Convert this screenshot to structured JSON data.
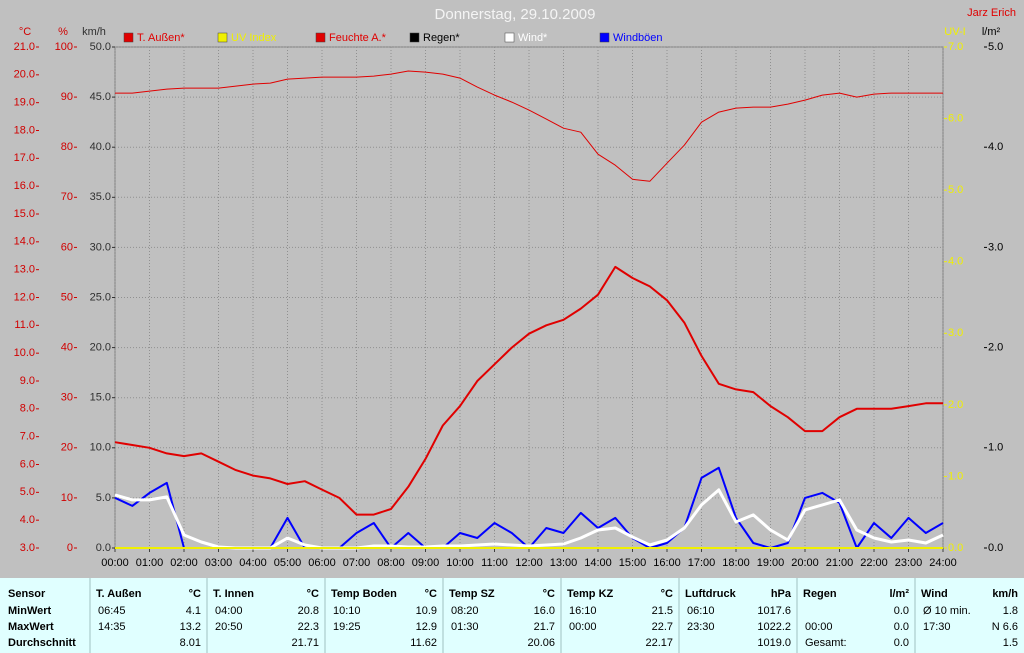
{
  "chart_data": {
    "type": "line",
    "title": "Donnerstag, 29.10.2009",
    "author": "Jarz Erich",
    "xlim": [
      0,
      24
    ],
    "xticks": [
      {
        "value": 0,
        "label": "00:00"
      },
      {
        "value": 1,
        "label": "01:00"
      },
      {
        "value": 2,
        "label": "02:00"
      },
      {
        "value": 3,
        "label": "03:00"
      },
      {
        "value": 4,
        "label": "04:00"
      },
      {
        "value": 5,
        "label": "05:00"
      },
      {
        "value": 6,
        "label": "06:00"
      },
      {
        "value": 7,
        "label": "07:00"
      },
      {
        "value": 8,
        "label": "08:00"
      },
      {
        "value": 9,
        "label": "09:00"
      },
      {
        "value": 10,
        "label": "10:00"
      },
      {
        "value": 11,
        "label": "11:00"
      },
      {
        "value": 12,
        "label": "12:00"
      },
      {
        "value": 13,
        "label": "13:00"
      },
      {
        "value": 14,
        "label": "14:00"
      },
      {
        "value": 15,
        "label": "15:00"
      },
      {
        "value": 16,
        "label": "16:00"
      },
      {
        "value": 17,
        "label": "17:00"
      },
      {
        "value": 18,
        "label": "18:00"
      },
      {
        "value": 19,
        "label": "19:00"
      },
      {
        "value": 20,
        "label": "20:00"
      },
      {
        "value": 21,
        "label": "21:00"
      },
      {
        "value": 22,
        "label": "22:00"
      },
      {
        "value": 23,
        "label": "23:00"
      },
      {
        "value": 24,
        "label": "24:00"
      }
    ],
    "grid": true,
    "axes": [
      {
        "label": "°C",
        "side": "left",
        "color": "#d00000",
        "lim": [
          3,
          21
        ],
        "ticks": [
          {
            "value": 3,
            "label": "3.0"
          },
          {
            "value": 4,
            "label": "4.0"
          },
          {
            "value": 5,
            "label": "5.0"
          },
          {
            "value": 6,
            "label": "6.0"
          },
          {
            "value": 7,
            "label": "7.0"
          },
          {
            "value": 8,
            "label": "8.0"
          },
          {
            "value": 9,
            "label": "9.0"
          },
          {
            "value": 10,
            "label": "10.0"
          },
          {
            "value": 11,
            "label": "11.0"
          },
          {
            "value": 12,
            "label": "12.0"
          },
          {
            "value": 13,
            "label": "13.0"
          },
          {
            "value": 14,
            "label": "14.0"
          },
          {
            "value": 15,
            "label": "15.0"
          },
          {
            "value": 16,
            "label": "16.0"
          },
          {
            "value": 17,
            "label": "17.0"
          },
          {
            "value": 18,
            "label": "18.0"
          },
          {
            "value": 19,
            "label": "19.0"
          },
          {
            "value": 20,
            "label": "20.0"
          },
          {
            "value": 21,
            "label": "21.0"
          }
        ]
      },
      {
        "label": "%",
        "side": "left",
        "color": "#d00000",
        "lim": [
          0,
          100
        ],
        "ticks": [
          0,
          10,
          20,
          30,
          40,
          50,
          60,
          70,
          80,
          90,
          100
        ]
      },
      {
        "label": "km/h",
        "side": "left",
        "color": "#303030",
        "lim": [
          0,
          50
        ],
        "grid": true,
        "ticks": [
          {
            "value": 0,
            "label": "0.0"
          },
          {
            "value": 5,
            "label": "5.0"
          },
          {
            "value": 10,
            "label": "10.0"
          },
          {
            "value": 15,
            "label": "15.0"
          },
          {
            "value": 20,
            "label": "20.0"
          },
          {
            "value": 25,
            "label": "25.0"
          },
          {
            "value": 30,
            "label": "30.0"
          },
          {
            "value": 35,
            "label": "35.0"
          },
          {
            "value": 40,
            "label": "40.0"
          },
          {
            "value": 45,
            "label": "45.0"
          },
          {
            "value": 50,
            "label": "50.0"
          }
        ]
      },
      {
        "label": "UV-I",
        "side": "right",
        "color": "#f0f000",
        "lim": [
          0,
          7
        ],
        "ticks": [
          {
            "value": 0,
            "label": "0.0"
          },
          {
            "value": 1,
            "label": "1.0"
          },
          {
            "value": 2,
            "label": "2.0"
          },
          {
            "value": 3,
            "label": "3.0"
          },
          {
            "value": 4,
            "label": "4.0"
          },
          {
            "value": 5,
            "label": "5.0"
          },
          {
            "value": 6,
            "label": "6.0"
          },
          {
            "value": 7,
            "label": "7.0"
          }
        ]
      },
      {
        "label": "l/m²",
        "side": "right",
        "color": "#000000",
        "lim": [
          0,
          5
        ],
        "ticks": [
          {
            "value": 0,
            "label": "0.0"
          },
          {
            "value": 1,
            "label": "1.0"
          },
          {
            "value": 2,
            "label": "2.0"
          },
          {
            "value": 3,
            "label": "3.0"
          },
          {
            "value": 4,
            "label": "4.0"
          },
          {
            "value": 5,
            "label": "5.0"
          }
        ]
      }
    ],
    "x": [
      0,
      0.5,
      1,
      1.5,
      2,
      2.5,
      3,
      3.5,
      4,
      4.5,
      5,
      5.5,
      6,
      6.5,
      7,
      7.5,
      8,
      8.5,
      9,
      9.5,
      10,
      10.5,
      11,
      11.5,
      12,
      12.5,
      13,
      13.5,
      14,
      14.5,
      15,
      15.5,
      16,
      16.5,
      17,
      17.5,
      18,
      18.5,
      19,
      19.5,
      20,
      20.5,
      21,
      21.5,
      22,
      22.5,
      23,
      23.5,
      24
    ],
    "series": [
      {
        "name": "T. Außen*",
        "color": "#e00000",
        "axis": 0,
        "width": 2,
        "values": [
          6.8,
          6.7,
          6.6,
          6.4,
          6.3,
          6.4,
          6.1,
          5.8,
          5.6,
          5.5,
          5.3,
          5.4,
          5.1,
          4.8,
          4.2,
          4.2,
          4.4,
          5.2,
          6.2,
          7.4,
          8.1,
          9.0,
          9.6,
          10.2,
          10.7,
          11.0,
          11.2,
          11.6,
          12.1,
          13.1,
          12.7,
          12.4,
          11.9,
          11.1,
          9.9,
          8.9,
          8.7,
          8.6,
          8.1,
          7.7,
          7.2,
          7.2,
          7.7,
          8.0,
          8.0,
          8.0,
          8.1,
          8.2,
          8.2
        ]
      },
      {
        "name": "UV Index",
        "color": "#f0f000",
        "axis": 3,
        "width": 2,
        "values": [
          0,
          0,
          0,
          0,
          0,
          0,
          0,
          0,
          0,
          0,
          0,
          0,
          0,
          0,
          0,
          0,
          0,
          0,
          0,
          0,
          0,
          0,
          0,
          0,
          0,
          0,
          0,
          0,
          0,
          0,
          0,
          0,
          0,
          0,
          0,
          0,
          0,
          0,
          0,
          0,
          0,
          0,
          0,
          0,
          0,
          0,
          0,
          0,
          0
        ]
      },
      {
        "name": "Feuchte A.*",
        "color": "#e00000",
        "axis": 1,
        "width": 1,
        "values": [
          90.8,
          90.8,
          91.2,
          91.6,
          91.8,
          91.8,
          91.8,
          92.2,
          92.6,
          92.8,
          93.6,
          93.8,
          94,
          94,
          94,
          94.2,
          94.6,
          95.2,
          95,
          94.6,
          93.8,
          92,
          90.4,
          89,
          87.4,
          85.6,
          83.8,
          83,
          78.6,
          76.4,
          73.6,
          73.2,
          76.8,
          80.4,
          85,
          87,
          87.8,
          88,
          88,
          88.6,
          89.4,
          90.4,
          90.8,
          90,
          90.6,
          90.8,
          90.8,
          90.8,
          90.8
        ]
      },
      {
        "name": "Regen*",
        "color": "#000000",
        "axis": 4,
        "width": 1,
        "values": [
          0,
          0,
          0,
          0,
          0,
          0,
          0,
          0,
          0,
          0,
          0,
          0,
          0,
          0,
          0,
          0,
          0,
          0,
          0,
          0,
          0,
          0,
          0,
          0,
          0,
          0,
          0,
          0,
          0,
          0,
          0,
          0,
          0,
          0,
          0,
          0,
          0,
          0,
          0,
          0,
          0,
          0,
          0,
          0,
          0,
          0,
          0,
          0,
          0
        ]
      },
      {
        "name": "Wind*",
        "color": "#ffffff",
        "axis": 2,
        "width": 3,
        "values": [
          5.3,
          4.8,
          4.8,
          5.1,
          1.3,
          0.6,
          0.1,
          0,
          0,
          0,
          1,
          0.3,
          0,
          0,
          0,
          0.2,
          0.2,
          0.1,
          0.1,
          0.2,
          0.2,
          0.3,
          0.4,
          0.3,
          0.2,
          0.3,
          0.4,
          1.0,
          1.8,
          2.0,
          1.1,
          0.3,
          0.8,
          2.0,
          4.3,
          5.8,
          2.6,
          3.3,
          1.8,
          0.8,
          3.8,
          4.3,
          4.8,
          1.8,
          1.0,
          0.6,
          0.8,
          0.5,
          1.3
        ]
      },
      {
        "name": "Windböen",
        "color": "#0000ff",
        "axis": 2,
        "width": 2,
        "values": [
          5.0,
          4.2,
          5.5,
          6.5,
          0,
          0,
          0,
          0,
          0,
          0,
          3.0,
          0,
          0,
          0,
          1.5,
          2.5,
          0,
          1.5,
          0,
          0,
          1.5,
          1.0,
          2.5,
          1.5,
          0,
          2.0,
          1.5,
          3.5,
          2.0,
          3.0,
          1.0,
          0,
          0.5,
          2.0,
          7.0,
          8.0,
          3.0,
          0.5,
          0,
          0.5,
          5.0,
          5.5,
          4.5,
          0,
          2.5,
          1.0,
          3.0,
          1.5,
          2.5
        ]
      }
    ]
  },
  "table": {
    "row_labels": [
      "Sensor",
      "MinWert",
      "MaxWert",
      "Durchschnitt"
    ],
    "groups": [
      {
        "name": "T. Außen",
        "unit": "°C",
        "rows": [
          {
            "left": "06:45",
            "right": "4.1"
          },
          {
            "left": "14:35",
            "right": "13.2"
          },
          {
            "right": "8.01"
          }
        ]
      },
      {
        "name": "T. Innen",
        "unit": "°C",
        "rows": [
          {
            "left": "04:00",
            "right": "20.8"
          },
          {
            "left": "20:50",
            "right": "22.3"
          },
          {
            "right": "21.71"
          }
        ]
      },
      {
        "name": "Temp Boden",
        "unit": "°C",
        "rows": [
          {
            "left": "10:10",
            "right": "10.9"
          },
          {
            "left": "19:25",
            "right": "12.9"
          },
          {
            "right": "11.62"
          }
        ]
      },
      {
        "name": "Temp SZ",
        "unit": "°C",
        "rows": [
          {
            "left": "08:20",
            "right": "16.0"
          },
          {
            "left": "01:30",
            "right": "21.7"
          },
          {
            "right": "20.06"
          }
        ]
      },
      {
        "name": "Temp KZ",
        "unit": "°C",
        "rows": [
          {
            "left": "16:10",
            "right": "21.5"
          },
          {
            "left": "00:00",
            "right": "22.7"
          },
          {
            "right": "22.17"
          }
        ]
      },
      {
        "name": "Luftdruck",
        "unit": "hPa",
        "rows": [
          {
            "left": "06:10",
            "right": "1017.6"
          },
          {
            "left": "23:30",
            "right": "1022.2"
          },
          {
            "right": "1019.0"
          }
        ]
      },
      {
        "name": "Regen",
        "unit": "l/m²",
        "rows": [
          {
            "right": "0.0"
          },
          {
            "left": "00:00",
            "right": "0.0"
          },
          {
            "left": "Gesamt:",
            "right": "0.0"
          }
        ]
      },
      {
        "name": "Wind",
        "unit": "km/h",
        "rows": [
          {
            "left": "Ø 10 min.",
            "right": "1.8"
          },
          {
            "left": "17:30",
            "right": "N 6.6"
          },
          {
            "right": "1.5"
          }
        ]
      }
    ]
  }
}
